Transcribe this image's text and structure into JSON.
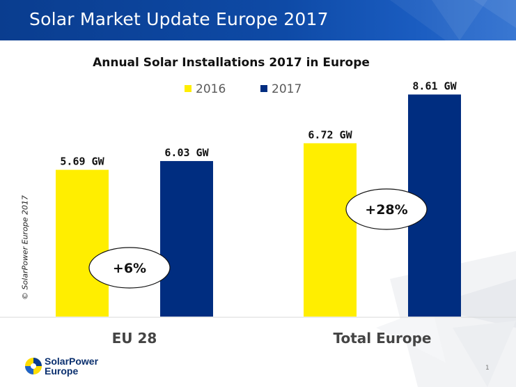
{
  "slide": {
    "title": "Solar Market Update Europe 2017",
    "copyright": "© SolarPower Europe 2017",
    "logo_line1": "SolarPower",
    "logo_line2": "Europe",
    "page_number": "1"
  },
  "colors": {
    "header_blue": "#0e4aa6",
    "series_2016": "#ffee00",
    "series_2017": "#002d80"
  },
  "icons": [
    "solarpower-europe-logo-icon"
  ],
  "chart_data": {
    "type": "bar",
    "title": "Annual Solar Installations 2017 in Europe",
    "categories": [
      "EU 28",
      "Total Europe"
    ],
    "series": [
      {
        "name": "2016",
        "values": [
          5.69,
          6.72
        ],
        "labels": [
          "5.69 GW",
          "6.72 GW"
        ],
        "color": "#ffee00"
      },
      {
        "name": "2017",
        "values": [
          6.03,
          8.61
        ],
        "labels": [
          "6.03 GW",
          "8.61 GW"
        ],
        "color": "#002d80"
      }
    ],
    "annotations": [
      "+6%",
      "+28%"
    ],
    "ylim": [
      0,
      9.3
    ],
    "legend": "top",
    "grid": false
  }
}
